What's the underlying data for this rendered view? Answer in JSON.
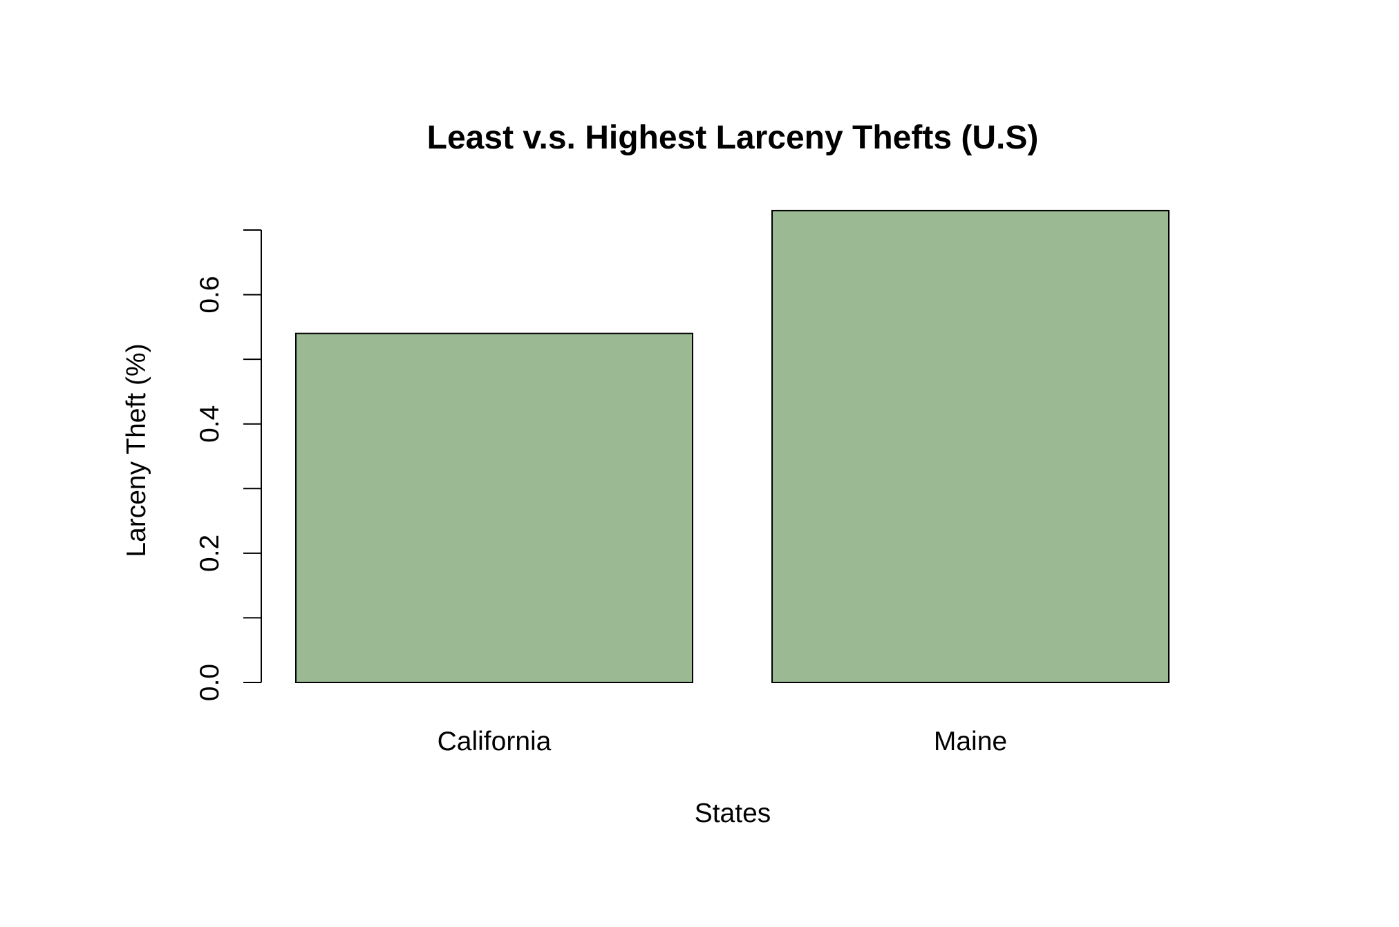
{
  "chart_data": {
    "type": "bar",
    "title": "Least v.s. Highest Larceny Thefts (U.S)",
    "xlabel": "States",
    "ylabel": "Larceny Theft (%)",
    "categories": [
      "California",
      "Maine"
    ],
    "values": [
      0.54,
      0.73
    ],
    "ylim": [
      0,
      0.7
    ],
    "yticks": [
      0.0,
      0.1,
      0.2,
      0.3,
      0.4,
      0.5,
      0.6,
      0.7
    ],
    "ytick_labels": [
      "0.0",
      "",
      "0.2",
      "",
      "0.4",
      "",
      "0.6",
      ""
    ],
    "bar_color": "#9bba94",
    "bar_edge_color": "#000000",
    "grid": false,
    "legend": "none"
  }
}
